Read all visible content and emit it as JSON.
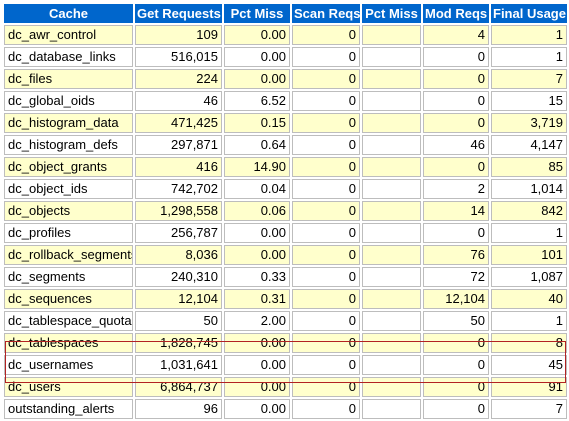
{
  "columns": [
    "Cache",
    "Get Requests",
    "Pct Miss",
    "Scan Reqs",
    "Pct Miss",
    "Mod Reqs",
    "Final Usage"
  ],
  "rows": [
    {
      "cache": "dc_awr_control",
      "get_requests": "109",
      "pct_miss": "0.00",
      "scan_reqs": "0",
      "scan_pct_miss": "",
      "mod_reqs": "4",
      "final_usage": "1"
    },
    {
      "cache": "dc_database_links",
      "get_requests": "516,015",
      "pct_miss": "0.00",
      "scan_reqs": "0",
      "scan_pct_miss": "",
      "mod_reqs": "0",
      "final_usage": "1"
    },
    {
      "cache": "dc_files",
      "get_requests": "224",
      "pct_miss": "0.00",
      "scan_reqs": "0",
      "scan_pct_miss": "",
      "mod_reqs": "0",
      "final_usage": "7"
    },
    {
      "cache": "dc_global_oids",
      "get_requests": "46",
      "pct_miss": "6.52",
      "scan_reqs": "0",
      "scan_pct_miss": "",
      "mod_reqs": "0",
      "final_usage": "15"
    },
    {
      "cache": "dc_histogram_data",
      "get_requests": "471,425",
      "pct_miss": "0.15",
      "scan_reqs": "0",
      "scan_pct_miss": "",
      "mod_reqs": "0",
      "final_usage": "3,719"
    },
    {
      "cache": "dc_histogram_defs",
      "get_requests": "297,871",
      "pct_miss": "0.64",
      "scan_reqs": "0",
      "scan_pct_miss": "",
      "mod_reqs": "46",
      "final_usage": "4,147"
    },
    {
      "cache": "dc_object_grants",
      "get_requests": "416",
      "pct_miss": "14.90",
      "scan_reqs": "0",
      "scan_pct_miss": "",
      "mod_reqs": "0",
      "final_usage": "85"
    },
    {
      "cache": "dc_object_ids",
      "get_requests": "742,702",
      "pct_miss": "0.04",
      "scan_reqs": "0",
      "scan_pct_miss": "",
      "mod_reqs": "2",
      "final_usage": "1,014"
    },
    {
      "cache": "dc_objects",
      "get_requests": "1,298,558",
      "pct_miss": "0.06",
      "scan_reqs": "0",
      "scan_pct_miss": "",
      "mod_reqs": "14",
      "final_usage": "842"
    },
    {
      "cache": "dc_profiles",
      "get_requests": "256,787",
      "pct_miss": "0.00",
      "scan_reqs": "0",
      "scan_pct_miss": "",
      "mod_reqs": "0",
      "final_usage": "1"
    },
    {
      "cache": "dc_rollback_segments",
      "get_requests": "8,036",
      "pct_miss": "0.00",
      "scan_reqs": "0",
      "scan_pct_miss": "",
      "mod_reqs": "76",
      "final_usage": "101"
    },
    {
      "cache": "dc_segments",
      "get_requests": "240,310",
      "pct_miss": "0.33",
      "scan_reqs": "0",
      "scan_pct_miss": "",
      "mod_reqs": "72",
      "final_usage": "1,087"
    },
    {
      "cache": "dc_sequences",
      "get_requests": "12,104",
      "pct_miss": "0.31",
      "scan_reqs": "0",
      "scan_pct_miss": "",
      "mod_reqs": "12,104",
      "final_usage": "40"
    },
    {
      "cache": "dc_tablespace_quotas",
      "get_requests": "50",
      "pct_miss": "2.00",
      "scan_reqs": "0",
      "scan_pct_miss": "",
      "mod_reqs": "50",
      "final_usage": "1"
    },
    {
      "cache": "dc_tablespaces",
      "get_requests": "1,828,745",
      "pct_miss": "0.00",
      "scan_reqs": "0",
      "scan_pct_miss": "",
      "mod_reqs": "0",
      "final_usage": "8"
    },
    {
      "cache": "dc_usernames",
      "get_requests": "1,031,641",
      "pct_miss": "0.00",
      "scan_reqs": "0",
      "scan_pct_miss": "",
      "mod_reqs": "0",
      "final_usage": "45"
    },
    {
      "cache": "dc_users",
      "get_requests": "6,864,737",
      "pct_miss": "0.00",
      "scan_reqs": "0",
      "scan_pct_miss": "",
      "mod_reqs": "0",
      "final_usage": "91"
    },
    {
      "cache": "outstanding_alerts",
      "get_requests": "96",
      "pct_miss": "0.00",
      "scan_reqs": "0",
      "scan_pct_miss": "",
      "mod_reqs": "0",
      "final_usage": "7"
    }
  ],
  "highlighted_rows": [
    "dc_usernames",
    "dc_users"
  ],
  "colors": {
    "header_bg": "#0066cc",
    "header_text": "#ffffff",
    "odd_row_bg": "#ffffcc",
    "even_row_bg": "#ffffff",
    "highlight_border": "#b22222"
  }
}
